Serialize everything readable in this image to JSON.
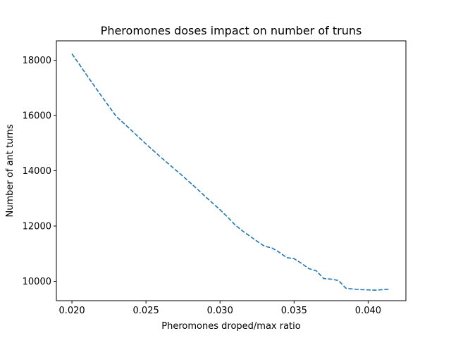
{
  "chart_data": {
    "type": "line",
    "title": "Pheromones doses impact on number of truns",
    "xlabel": "Pheromones droped/max ratio",
    "ylabel": "Number of ant turns",
    "xlim": [
      0.01895,
      0.04255
    ],
    "ylim": [
      9300,
      18700
    ],
    "xticks": [
      0.02,
      0.025,
      0.03,
      0.035,
      0.04
    ],
    "xtick_labels": [
      "0.020",
      "0.025",
      "0.030",
      "0.035",
      "0.040"
    ],
    "yticks": [
      10000,
      12000,
      14000,
      16000,
      18000
    ],
    "ytick_labels": [
      "10000",
      "12000",
      "14000",
      "16000",
      "18000"
    ],
    "grid": false,
    "series": [
      {
        "line_style": "dashed",
        "color": "#1f77b4",
        "x": [
          0.02,
          0.0205,
          0.021,
          0.0215,
          0.022,
          0.0225,
          0.023,
          0.0235,
          0.024,
          0.0245,
          0.025,
          0.0255,
          0.026,
          0.0265,
          0.027,
          0.0275,
          0.028,
          0.0285,
          0.029,
          0.0295,
          0.03,
          0.0305,
          0.031,
          0.0315,
          0.032,
          0.0325,
          0.033,
          0.0335,
          0.034,
          0.0345,
          0.035,
          0.0355,
          0.036,
          0.0365,
          0.037,
          0.0375,
          0.038,
          0.0385,
          0.039,
          0.0395,
          0.04,
          0.0405,
          0.041,
          0.0415
        ],
        "y": [
          18230,
          17850,
          17460,
          17080,
          16700,
          16330,
          15960,
          15720,
          15470,
          15220,
          14970,
          14730,
          14490,
          14260,
          14030,
          13800,
          13560,
          13320,
          13070,
          12830,
          12590,
          12330,
          12050,
          11830,
          11640,
          11450,
          11270,
          11210,
          11050,
          10860,
          10820,
          10650,
          10460,
          10380,
          10100,
          10080,
          10030,
          9750,
          9720,
          9700,
          9690,
          9680,
          9700,
          9720
        ]
      }
    ]
  }
}
